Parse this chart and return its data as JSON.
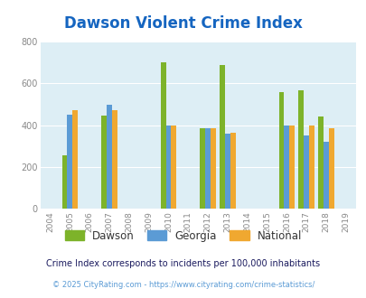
{
  "title": "Dawson Violent Crime Index",
  "years": [
    2005,
    2007,
    2010,
    2012,
    2013,
    2016,
    2017,
    2018
  ],
  "dawson": [
    255,
    445,
    700,
    385,
    690,
    560,
    565,
    440
  ],
  "georgia": [
    450,
    500,
    400,
    385,
    360,
    400,
    350,
    320
  ],
  "national": [
    470,
    470,
    400,
    385,
    365,
    400,
    400,
    385
  ],
  "xticks": [
    2004,
    2005,
    2006,
    2007,
    2008,
    2009,
    2010,
    2011,
    2012,
    2013,
    2014,
    2015,
    2016,
    2017,
    2018,
    2019
  ],
  "ylim": [
    0,
    800
  ],
  "yticks": [
    0,
    200,
    400,
    600,
    800
  ],
  "bar_width": 0.27,
  "color_dawson": "#7db32a",
  "color_georgia": "#5b9bd5",
  "color_national": "#f0a830",
  "bg_color": "#ddeef5",
  "label_dawson": "Dawson",
  "label_georgia": "Georgia",
  "label_national": "National",
  "footnote1": "Crime Index corresponds to incidents per 100,000 inhabitants",
  "footnote2": "© 2025 CityRating.com - https://www.cityrating.com/crime-statistics/",
  "title_color": "#1565c0",
  "footnote1_color": "#1a1a5e",
  "footnote2_color": "#5b9bd5"
}
